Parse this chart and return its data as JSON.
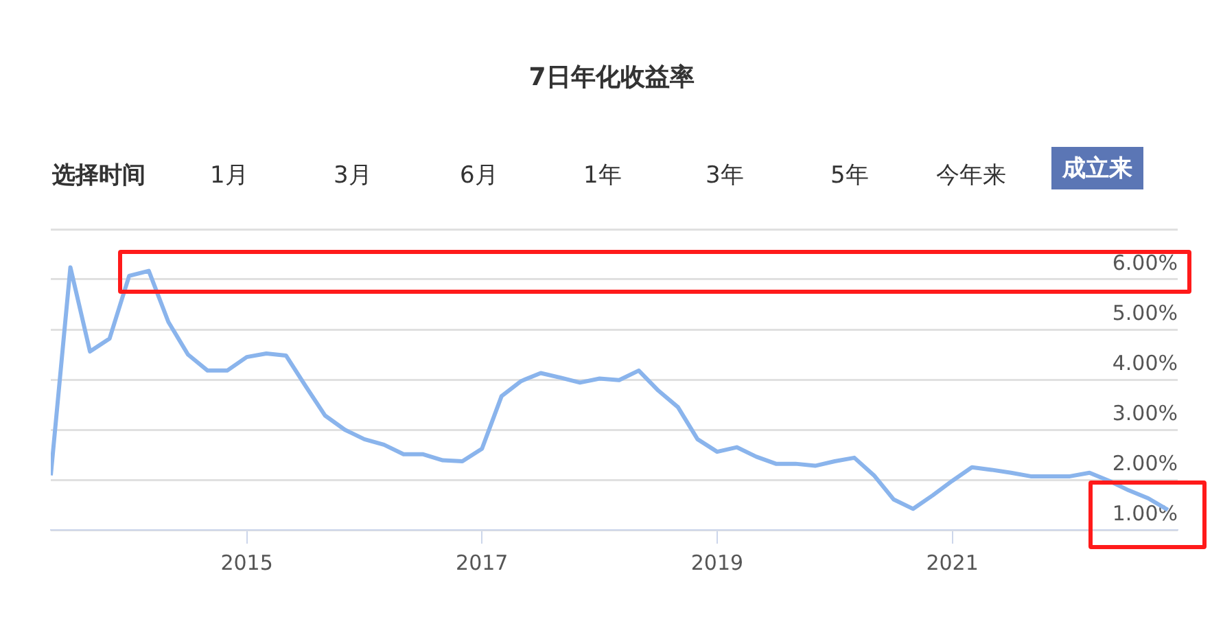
{
  "chart_data": {
    "type": "line",
    "title": "7日年化收益率",
    "annotations": [
      "选择时间",
      "1月",
      "3月",
      "6月",
      "1年",
      "3年",
      "5年",
      "今年来",
      "成立来"
    ],
    "x": [
      "2013-05",
      "2013-07",
      "2013-09",
      "2013-11",
      "2014-01",
      "2014-03",
      "2014-05",
      "2014-07",
      "2014-09",
      "2014-11",
      "2015-01",
      "2015-03",
      "2015-05",
      "2015-07",
      "2015-09",
      "2015-11",
      "2016-01",
      "2016-03",
      "2016-05",
      "2016-07",
      "2016-09",
      "2016-11",
      "2017-01",
      "2017-03",
      "2017-05",
      "2017-07",
      "2017-09",
      "2017-11",
      "2018-01",
      "2018-03",
      "2018-05",
      "2018-07",
      "2018-09",
      "2018-11",
      "2019-01",
      "2019-03",
      "2019-05",
      "2019-07",
      "2019-09",
      "2019-11",
      "2020-01",
      "2020-03",
      "2020-05",
      "2020-07",
      "2020-09",
      "2020-11",
      "2021-01",
      "2021-03",
      "2021-05",
      "2021-07",
      "2021-09",
      "2021-11",
      "2022-01",
      "2022-03",
      "2022-05",
      "2022-07",
      "2022-09",
      "2022-11"
    ],
    "series": [
      {
        "color": "#8ab4ec",
        "values": [
          2.09,
          6.24,
          4.56,
          4.82,
          6.07,
          6.17,
          5.15,
          4.5,
          4.18,
          4.18,
          4.45,
          4.52,
          4.48,
          3.87,
          3.28,
          3.0,
          2.81,
          2.7,
          2.51,
          2.51,
          2.39,
          2.37,
          2.62,
          3.67,
          3.97,
          4.13,
          4.04,
          3.94,
          4.02,
          3.99,
          4.18,
          3.78,
          3.45,
          2.81,
          2.56,
          2.65,
          2.46,
          2.32,
          2.32,
          2.28,
          2.37,
          2.44,
          2.09,
          1.61,
          1.42,
          1.69,
          1.98,
          2.25,
          2.2,
          2.14,
          2.07,
          2.07,
          2.07,
          2.14,
          1.98,
          1.79,
          1.63,
          1.4
        ]
      }
    ],
    "xlim": [
      "2013-05",
      "2022-12"
    ],
    "xticks": [
      "2015",
      "2017",
      "2019",
      "2021"
    ],
    "ylim": [
      1,
      7
    ],
    "yticks": [
      {
        "value": 1,
        "label": "1.00%"
      },
      {
        "value": 2,
        "label": "2.00%"
      },
      {
        "value": 3,
        "label": "3.00%"
      },
      {
        "value": 4,
        "label": "4.00%"
      },
      {
        "value": 5,
        "label": "5.00%"
      },
      {
        "value": 6,
        "label": "6.00%"
      },
      {
        "value": 7,
        "label": null
      }
    ],
    "grid": "y",
    "legend": false,
    "marker": "none",
    "line_style": "solid"
  }
}
